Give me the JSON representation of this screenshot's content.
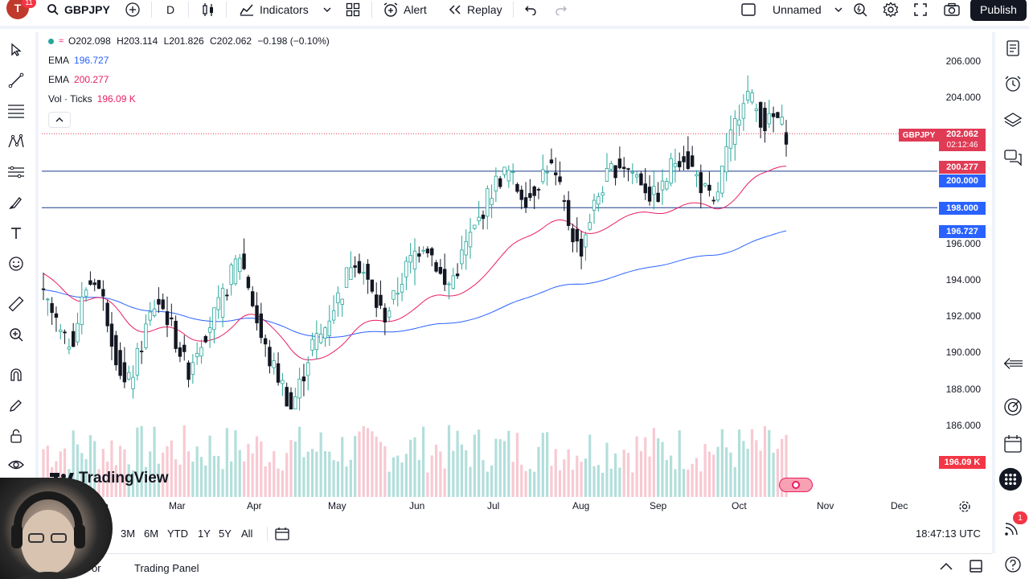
{
  "toolbar": {
    "avatar_letter": "T",
    "avatar_badge": "11",
    "symbol": "GBPJPY",
    "interval": "D",
    "indicators_label": "Indicators",
    "alert_label": "Alert",
    "replay_label": "Replay",
    "layout_name": "Unnamed",
    "publish_label": "Publish"
  },
  "legend": {
    "ohlc": {
      "o": "O202.098",
      "h": "H203.114",
      "l": "L201.826",
      "c": "C202.062",
      "chg": "−0.198 (−0.10%)"
    },
    "ema1": {
      "name": "EMA",
      "value": "196.727"
    },
    "ema2": {
      "name": "EMA",
      "value": "200.277"
    },
    "vol": {
      "name": "Vol · Ticks",
      "value": "196.09 K"
    }
  },
  "price_scale": [
    "206.000",
    "204.000",
    "196.000",
    "194.000",
    "192.000",
    "190.000",
    "188.000",
    "186.000"
  ],
  "price_labels": {
    "symbol": "GBPJPY",
    "last": "202.062",
    "countdown": "02:12:46",
    "ema2": "200.277",
    "line1": "200.000",
    "line2": "198.000",
    "ema1": "196.727",
    "vol": "196.09 K"
  },
  "time_axis": [
    "b",
    "Mar",
    "Apr",
    "May",
    "Jun",
    "Jul",
    "Aug",
    "Sep",
    "Oct",
    "Nov",
    "Dec"
  ],
  "ranges": [
    "3M",
    "6M",
    "YTD",
    "1Y",
    "5Y",
    "All"
  ],
  "clock": "18:47:13 UTC",
  "panels": {
    "left_partial": "or",
    "trading_panel": "Trading Panel"
  },
  "watermark": "TradingView",
  "notification_badge": "1",
  "colors": {
    "ema_fast": "#e91e63",
    "ema_slow": "#2962ff",
    "up": "#26a69a",
    "down": "#131722",
    "level_line": "#1e3a8a"
  },
  "chart_data": {
    "type": "line",
    "ylim": [
      185.0,
      207.0
    ],
    "horizontal_levels": [
      200.0,
      198.0
    ],
    "emas": [
      {
        "values_end": 200.277
      },
      {
        "values_end": 196.727
      }
    ],
    "close_series": [
      193,
      192,
      190.5,
      191,
      193.5,
      194.2,
      192.5,
      190,
      188,
      189.5,
      191.5,
      193,
      192,
      190.5,
      189,
      190.5,
      191.5,
      192.5,
      194,
      195.5,
      193.5,
      191,
      189.5,
      188.5,
      187,
      188.5,
      190.5,
      191,
      192.5,
      193.5,
      195.5,
      194.5,
      193,
      192,
      193,
      194.5,
      195.5,
      196.2,
      195,
      193.5,
      194.5,
      196,
      197,
      198.5,
      199.5,
      200,
      199,
      198.5,
      199.5,
      200.5,
      199,
      197,
      195.5,
      197.5,
      199,
      200,
      200.5,
      200,
      199.5,
      198.5,
      199,
      200.5,
      201,
      200,
      199,
      198,
      200.5,
      202.5,
      204.5,
      203.5,
      202.5,
      203,
      202.06
    ]
  }
}
